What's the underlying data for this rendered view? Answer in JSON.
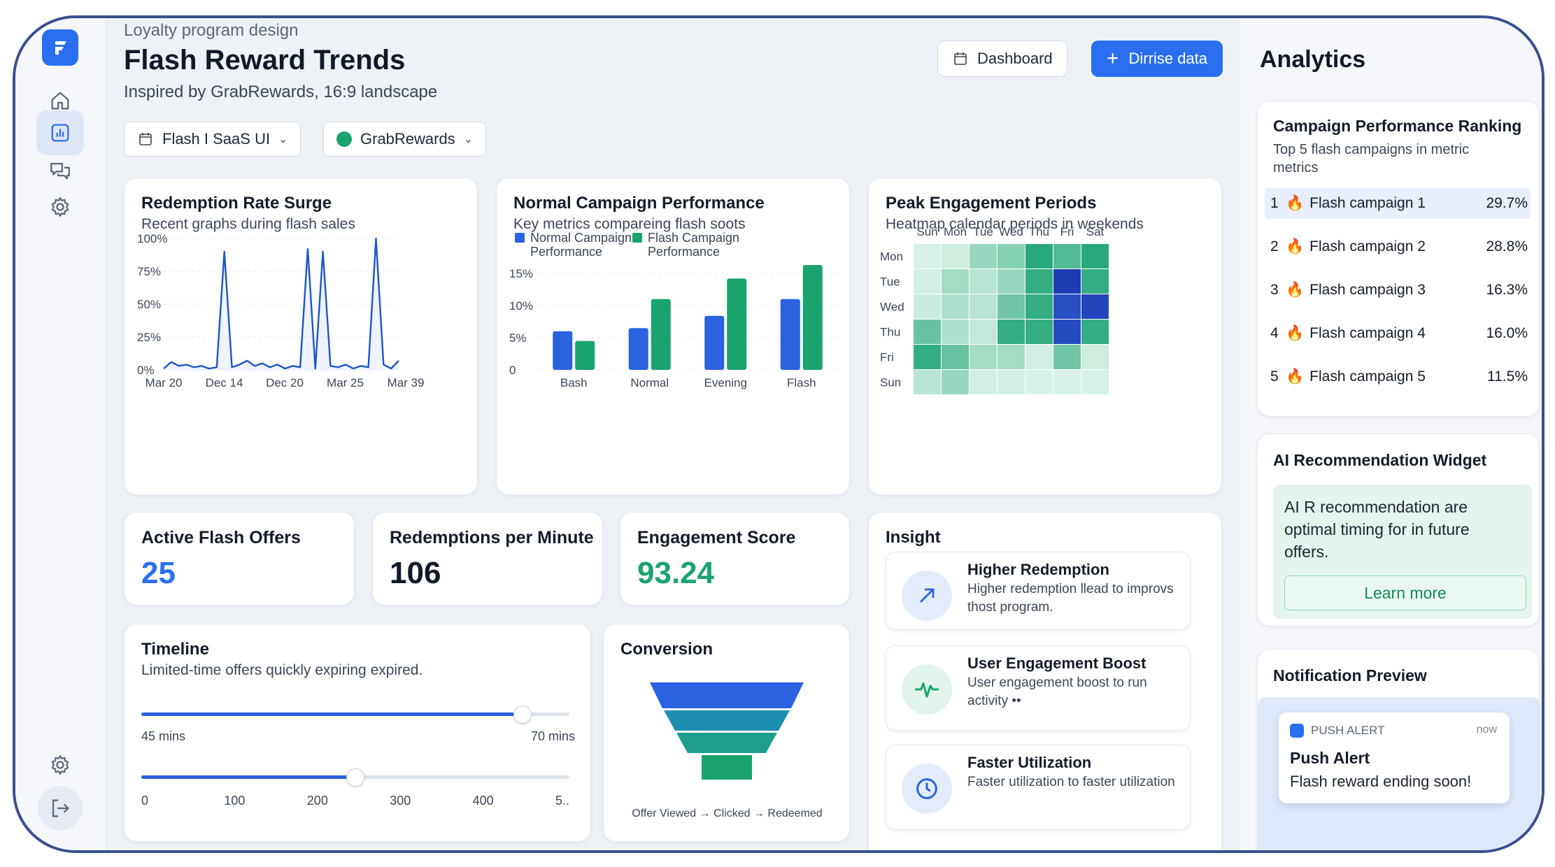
{
  "header": {
    "eyebrow": "Loyalty program design",
    "title": "Flash Reward Trends",
    "subtitle": "Inspired by GrabRewards, 16:9 landscape",
    "dashboard_label": "Dashboard",
    "primary_label": "Dirrise data"
  },
  "filters": {
    "app": "Flash I SaaS UI",
    "brand": "GrabRewards"
  },
  "colors": {
    "accent": "#2a6ff0",
    "green": "#1aa36f",
    "navy": "#1d3c8f"
  },
  "redemption": {
    "title": "Redemption Rate Surge",
    "subtitle": "Recent graphs during flash sales"
  },
  "campaign": {
    "title": "Normal Campaign Performance",
    "subtitle": "Key metrics compareing flash soots"
  },
  "heatmap": {
    "title": "Peak Engagement Periods",
    "subtitle": "Heatmap calendar periods in weekends"
  },
  "chart_data": [
    {
      "type": "line",
      "x_ticks": [
        "Mar 20",
        "Dec 14",
        "Dec 20",
        "Mar 25",
        "Mar 39"
      ],
      "y_ticks": [
        "100%",
        "75%",
        "50%",
        "25%",
        "0%"
      ],
      "ylim": [
        0,
        100
      ],
      "series": [
        {
          "values": [
            1,
            6,
            3,
            4,
            2,
            3,
            1,
            2,
            90,
            2,
            4,
            7,
            3,
            5,
            2,
            4,
            1,
            3,
            2,
            92,
            1,
            90,
            3,
            2,
            4,
            1,
            3,
            2,
            100,
            4,
            1,
            7
          ]
        }
      ]
    },
    {
      "type": "bar",
      "categories": [
        "Bash",
        "Normal",
        "Evening",
        "Flash"
      ],
      "y_ticks": [
        "15%",
        "10%",
        "5%",
        "0"
      ],
      "ylim": [
        0,
        15
      ],
      "legend_position": "top",
      "series": [
        {
          "name": "Normal Campaign Performance",
          "values": [
            6,
            6.5,
            8.4,
            11
          ],
          "color": "#2a62e0"
        },
        {
          "name": "Flash Campaign Performance",
          "values": [
            4.5,
            11,
            14.2,
            16.3
          ],
          "color": "#1aa36f"
        }
      ]
    },
    {
      "type": "heatmap",
      "columns": [
        "Sun",
        "Mon",
        "Tue",
        "Wed",
        "Thu",
        "Fri",
        "Sat"
      ],
      "rows": [
        "Mon",
        "Tue",
        "Wed",
        "Thu",
        "Fri",
        "Sun"
      ],
      "values": [
        [
          0.05,
          0.1,
          0.35,
          0.45,
          0.9,
          0.7,
          0.9
        ],
        [
          0.08,
          0.3,
          0.2,
          0.35,
          0.85,
          -1,
          0.85
        ],
        [
          0.12,
          0.25,
          0.2,
          0.55,
          0.85,
          -0.7,
          -0.85
        ],
        [
          0.6,
          0.25,
          0.15,
          0.85,
          0.85,
          -0.75,
          0.85
        ],
        [
          0.85,
          0.6,
          0.3,
          0.3,
          0.08,
          0.55,
          0.1
        ],
        [
          0.2,
          0.35,
          0.08,
          0.08,
          0.05,
          0.05,
          0.05
        ]
      ]
    }
  ],
  "metrics": [
    {
      "label": "Active Flash Offers",
      "value": "25",
      "color": "#2a6ff0"
    },
    {
      "label": "Redemptions per Minute",
      "value": "106",
      "color": "#111827"
    },
    {
      "label": "Engagement Score",
      "value": "93.24",
      "color": "#1aa36f"
    }
  ],
  "timeline": {
    "title": "Timeline",
    "subtitle": "Limited-time offers quickly expiring expired.",
    "slider1": {
      "min_label": "45 mins",
      "max_label": "70 mins",
      "level": 0.89
    },
    "slider2": {
      "ticks": [
        "0",
        "100",
        "200",
        "300",
        "400",
        "5.."
      ],
      "level": 0.5
    }
  },
  "conversion": {
    "title": "Conversion",
    "caption": "Offer Viewed → Clicked → Redeemed"
  },
  "insight": {
    "title": "Insight",
    "items": [
      {
        "title": "Higher Redemption",
        "text": "Higher redemption llead to improvs thost program.",
        "icon": "trend-up-icon"
      },
      {
        "title": "User Engagement Boost",
        "text": "User engagement boost to run activity ••",
        "icon": "pulse-icon"
      },
      {
        "title": "Faster Utilization",
        "text": "Faster utilization to faster utilization",
        "icon": "clock-icon"
      }
    ]
  },
  "analytics": {
    "title": "Analytics",
    "ranking": {
      "title": "Campaign Performance Ranking",
      "subtitle": "Top 5 flash campaigns in metric metrics",
      "rows": [
        {
          "rank": "1",
          "name": "Flash campaign 1",
          "value": "29.7%"
        },
        {
          "rank": "2",
          "name": "Flash campaign 2",
          "value": "28.8%"
        },
        {
          "rank": "3",
          "name": "Flash campaign 3",
          "value": "16.3%"
        },
        {
          "rank": "4",
          "name": "Flash campaign 4",
          "value": "16.0%"
        },
        {
          "rank": "5",
          "name": "Flash campaign 5",
          "value": "11.5%"
        }
      ]
    },
    "ai": {
      "title": "AI Recommendation Widget",
      "text": "AI R recommendation are optimal timing for in future offers.",
      "button": "Learn more"
    },
    "notification": {
      "title": "Notification Preview",
      "badge": "PUSH ALERT",
      "time": "now",
      "heading": "Push Alert",
      "body": "Flash reward ending soon!"
    }
  }
}
